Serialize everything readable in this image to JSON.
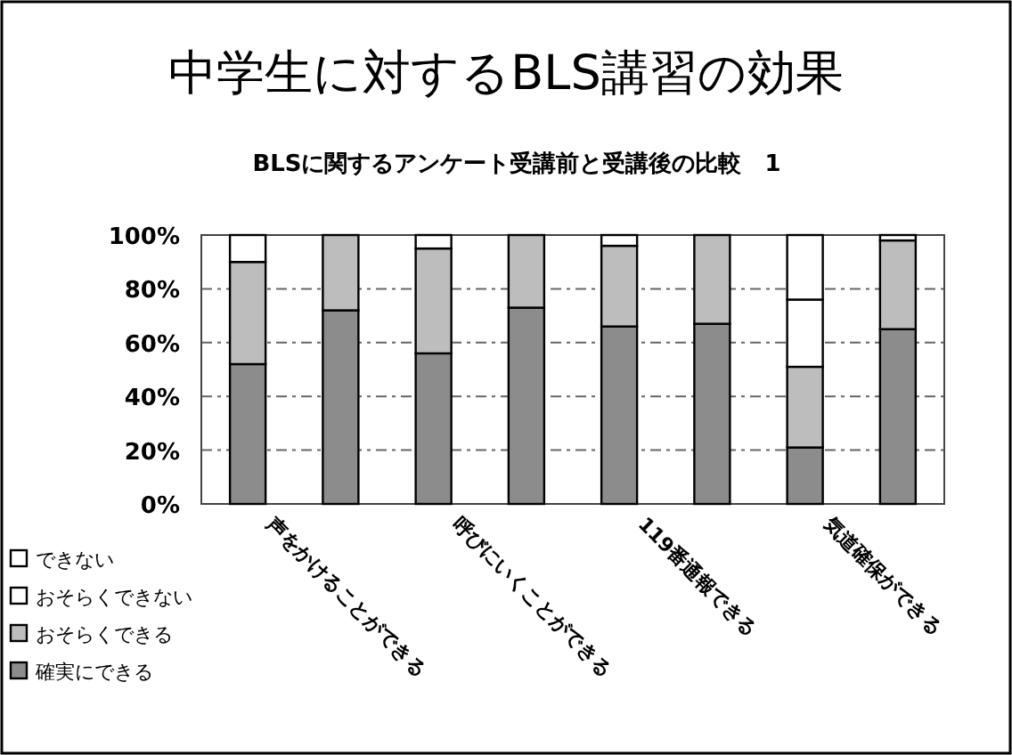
{
  "chart_data": {
    "type": "bar",
    "stacked": true,
    "title": "中学生に対するBLS講習の効果",
    "subtitle": "BLSに関するアンケート受講前と受講後の比較　1",
    "categories": [
      "声をかけることができる",
      null,
      "呼びにいくことができる",
      null,
      "119番通報できる",
      null,
      "気道確保ができる",
      null
    ],
    "series": [
      {
        "name": "確実にできる",
        "color": "#8c8c8c",
        "values": [
          52,
          72,
          56,
          73,
          66,
          67,
          21,
          65
        ]
      },
      {
        "name": "おそらくできる",
        "color": "#bdbdbd",
        "values": [
          38,
          28,
          39,
          27,
          30,
          33,
          30,
          33
        ]
      },
      {
        "name": "おそらくできない",
        "color": "#ffffff",
        "values": [
          10,
          0,
          5,
          0,
          4,
          0,
          25,
          2
        ]
      },
      {
        "name": "できない",
        "color": "#ffffff",
        "values": [
          0,
          0,
          0,
          0,
          0,
          0,
          24,
          0
        ]
      }
    ],
    "ylim": [
      0,
      100
    ],
    "yticks": [
      {
        "value": 0,
        "label": "0%"
      },
      {
        "value": 20,
        "label": "20%"
      },
      {
        "value": 40,
        "label": "40%"
      },
      {
        "value": 60,
        "label": "60%"
      },
      {
        "value": 80,
        "label": "80%"
      },
      {
        "value": 100,
        "label": "100%"
      }
    ],
    "grid": "y",
    "legend": "bottom left"
  }
}
